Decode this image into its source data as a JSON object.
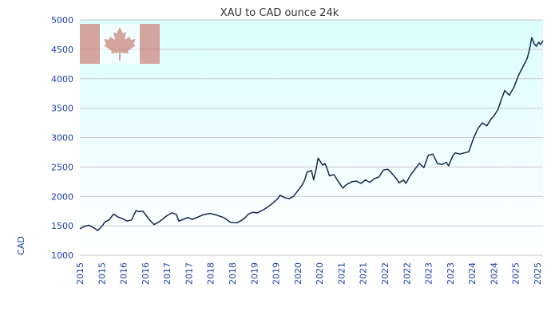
{
  "chart_data": {
    "type": "line",
    "title": "XAU to CAD ounce 24k",
    "xlabel": "",
    "ylabel": "CAD",
    "ylim": [
      1000,
      5000
    ],
    "yticks": [
      1000,
      1500,
      2000,
      2500,
      3000,
      3500,
      4000,
      4500,
      5000
    ],
    "xlim": [
      2015.0,
      2025.3
    ],
    "xtick_labels": [
      "2015",
      "2015",
      "2016",
      "2016",
      "2017",
      "2017",
      "2018",
      "2018",
      "2019",
      "2019",
      "2020",
      "2020",
      "2021",
      "2021",
      "2022",
      "2022",
      "2023",
      "2023",
      "2024",
      "2024",
      "2025",
      "2025"
    ],
    "grid": true,
    "series": [
      {
        "name": "XAU/CAD",
        "x": [
          2015.0,
          2015.1,
          2015.2,
          2015.3,
          2015.4,
          2015.5,
          2015.55,
          2015.65,
          2015.75,
          2015.85,
          2015.95,
          2016.05,
          2016.15,
          2016.25,
          2016.3,
          2016.4,
          2016.45,
          2016.55,
          2016.65,
          2016.75,
          2016.85,
          2016.95,
          2017.05,
          2017.15,
          2017.2,
          2017.3,
          2017.4,
          2017.5,
          2017.6,
          2017.75,
          2017.9,
          2018.05,
          2018.2,
          2018.35,
          2018.5,
          2018.65,
          2018.75,
          2018.85,
          2018.95,
          2019.1,
          2019.25,
          2019.4,
          2019.45,
          2019.55,
          2019.65,
          2019.75,
          2019.85,
          2019.95,
          2020.0,
          2020.05,
          2020.15,
          2020.2,
          2020.25,
          2020.3,
          2020.4,
          2020.45,
          2020.5,
          2020.55,
          2020.65,
          2020.75,
          2020.85,
          2020.9,
          2020.95,
          2021.05,
          2021.15,
          2021.25,
          2021.35,
          2021.45,
          2021.55,
          2021.65,
          2021.75,
          2021.85,
          2021.95,
          2022.05,
          2022.1,
          2022.2,
          2022.25,
          2022.35,
          2022.45,
          2022.55,
          2022.65,
          2022.75,
          2022.85,
          2022.95,
          2023.05,
          2023.15,
          2023.2,
          2023.3,
          2023.35,
          2023.45,
          2023.55,
          2023.65,
          2023.75,
          2023.85,
          2023.95,
          2024.05,
          2024.15,
          2024.2,
          2024.3,
          2024.35,
          2024.45,
          2024.55,
          2024.65,
          2024.75,
          2024.85,
          2024.95,
          2025.0,
          2025.05,
          2025.1,
          2025.15,
          2025.2,
          2025.25,
          2025.3
        ],
        "values": [
          1450,
          1490,
          1510,
          1470,
          1420,
          1500,
          1560,
          1600,
          1700,
          1650,
          1620,
          1580,
          1600,
          1760,
          1740,
          1750,
          1700,
          1600,
          1520,
          1560,
          1620,
          1680,
          1720,
          1690,
          1580,
          1610,
          1640,
          1610,
          1640,
          1690,
          1710,
          1680,
          1640,
          1560,
          1550,
          1620,
          1700,
          1730,
          1720,
          1780,
          1860,
          1960,
          2020,
          1980,
          1960,
          2000,
          2100,
          2200,
          2280,
          2410,
          2440,
          2280,
          2450,
          2650,
          2530,
          2560,
          2470,
          2350,
          2370,
          2250,
          2140,
          2180,
          2210,
          2250,
          2260,
          2220,
          2280,
          2240,
          2300,
          2330,
          2450,
          2460,
          2380,
          2290,
          2230,
          2280,
          2220,
          2360,
          2460,
          2560,
          2490,
          2700,
          2720,
          2560,
          2540,
          2580,
          2520,
          2700,
          2740,
          2720,
          2740,
          2760,
          2980,
          3150,
          3250,
          3200,
          3320,
          3360,
          3480,
          3600,
          3800,
          3720,
          3850,
          4050,
          4200,
          4350,
          4500,
          4700,
          4600,
          4550,
          4620,
          4580,
          4650
        ]
      }
    ]
  }
}
